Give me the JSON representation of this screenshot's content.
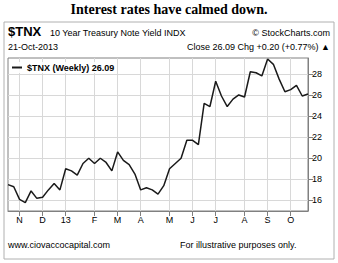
{
  "chart_data": {
    "type": "line",
    "title": "Interest rates have calmed down.",
    "header": {
      "symbol": "$TNX",
      "name": "10 Year Treasury Note Yield INDX",
      "source": "© StockCharts.com",
      "date": "21-Oct-2013",
      "quote": "Close 26.09 Chg +0.20 (+0.77%) ▲"
    },
    "footer": [
      "www.ciovaccocapital.com",
      "For illustrative purposes only."
    ],
    "categories": [
      null,
      null,
      "N",
      null,
      null,
      null,
      "D",
      null,
      null,
      null,
      "13",
      null,
      null,
      null,
      null,
      "F",
      null,
      null,
      null,
      "M",
      null,
      null,
      null,
      "A",
      null,
      null,
      null,
      null,
      "M",
      null,
      null,
      null,
      "J",
      null,
      null,
      null,
      "J",
      null,
      null,
      null,
      null,
      "A",
      null,
      null,
      null,
      "S",
      null,
      null,
      null,
      "O",
      null,
      null,
      null
    ],
    "series": [
      {
        "name": "$TNX (Weekly) 26.09",
        "color": "#1a1a1a",
        "values": [
          17.5,
          17.3,
          16.1,
          15.8,
          16.9,
          16.2,
          16.3,
          17.0,
          17.6,
          17.0,
          19.0,
          18.8,
          18.4,
          19.5,
          20.0,
          19.5,
          20.0,
          19.6,
          18.8,
          20.6,
          19.8,
          19.4,
          18.5,
          17.0,
          17.2,
          17.0,
          16.6,
          17.4,
          19.0,
          19.5,
          20.0,
          21.7,
          21.7,
          21.3,
          25.2,
          24.9,
          27.3,
          25.9,
          24.9,
          25.6,
          26.0,
          25.8,
          28.2,
          28.1,
          27.8,
          29.4,
          28.9,
          27.5,
          26.3,
          26.5,
          26.9,
          25.9,
          26.09
        ]
      }
    ],
    "ylim": [
      15,
      29.5
    ],
    "yticks": [
      16,
      18,
      20,
      22,
      24,
      26,
      28
    ],
    "grid": true,
    "legend": "top-left"
  }
}
